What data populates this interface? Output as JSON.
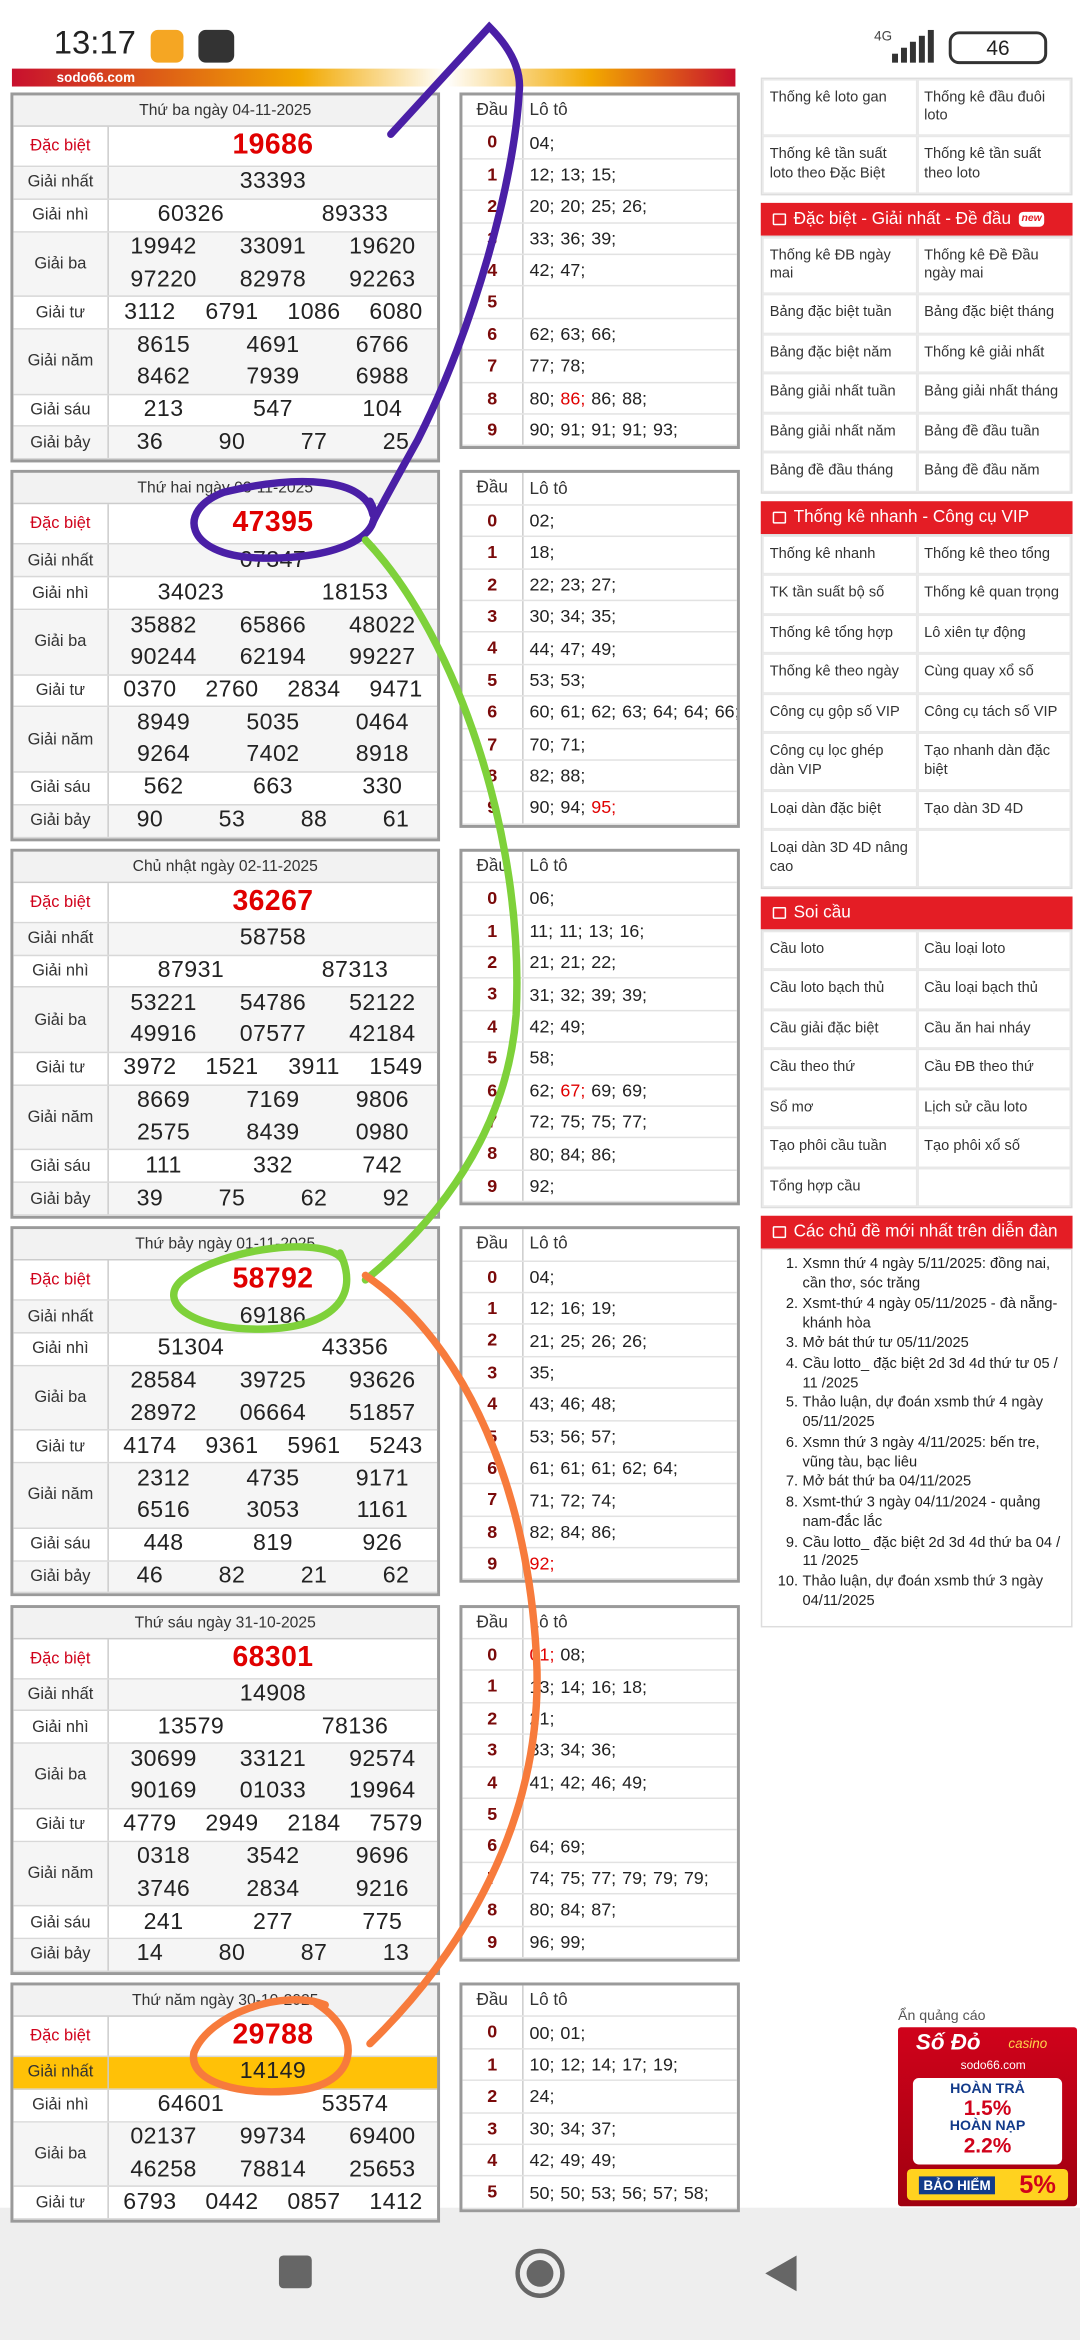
{
  "status": {
    "time": "13:17",
    "network": "4G",
    "battery": "46"
  },
  "banner": "sodo66.com",
  "results": [
    {
      "title": "Thứ ba ngày 04-11-2025",
      "rows": [
        {
          "label": "Đặc biệt",
          "numbers": [
            "19686"
          ]
        },
        {
          "label": "Giải nhất",
          "numbers": [
            "33393"
          ]
        },
        {
          "label": "Giải nhì",
          "numbers": [
            "60326",
            "89333"
          ]
        },
        {
          "label": "Giải ba",
          "numbers": [
            "19942",
            "33091",
            "19620",
            "97220",
            "82978",
            "92263"
          ]
        },
        {
          "label": "Giải tư",
          "numbers": [
            "3112",
            "6791",
            "1086",
            "6080"
          ]
        },
        {
          "label": "Giải năm",
          "numbers": [
            "8615",
            "4691",
            "6766",
            "8462",
            "7939",
            "6988"
          ]
        },
        {
          "label": "Giải sáu",
          "numbers": [
            "213",
            "547",
            "104"
          ]
        },
        {
          "label": "Giải bảy",
          "numbers": [
            "36",
            "90",
            "77",
            "25"
          ]
        }
      ]
    },
    {
      "title": "Thứ hai ngày 03-11-2025",
      "rows": [
        {
          "label": "Đặc biệt",
          "numbers": [
            "47395"
          ]
        },
        {
          "label": "Giải nhất",
          "numbers": [
            "07347"
          ]
        },
        {
          "label": "Giải nhì",
          "numbers": [
            "34023",
            "18153"
          ]
        },
        {
          "label": "Giải ba",
          "numbers": [
            "35882",
            "65866",
            "48022",
            "90244",
            "62194",
            "99227"
          ]
        },
        {
          "label": "Giải tư",
          "numbers": [
            "0370",
            "2760",
            "2834",
            "9471"
          ]
        },
        {
          "label": "Giải năm",
          "numbers": [
            "8949",
            "5035",
            "0464",
            "9264",
            "7402",
            "8918"
          ]
        },
        {
          "label": "Giải sáu",
          "numbers": [
            "562",
            "663",
            "330"
          ]
        },
        {
          "label": "Giải bảy",
          "numbers": [
            "90",
            "53",
            "88",
            "61"
          ]
        }
      ]
    },
    {
      "title": "Chủ nhật ngày 02-11-2025",
      "rows": [
        {
          "label": "Đặc biệt",
          "numbers": [
            "36267"
          ]
        },
        {
          "label": "Giải nhất",
          "numbers": [
            "58758"
          ]
        },
        {
          "label": "Giải nhì",
          "numbers": [
            "87931",
            "87313"
          ]
        },
        {
          "label": "Giải ba",
          "numbers": [
            "53221",
            "54786",
            "52122",
            "49916",
            "07577",
            "42184"
          ]
        },
        {
          "label": "Giải tư",
          "numbers": [
            "3972",
            "1521",
            "3911",
            "1549"
          ]
        },
        {
          "label": "Giải năm",
          "numbers": [
            "8669",
            "7169",
            "9806",
            "2575",
            "8439",
            "0980"
          ]
        },
        {
          "label": "Giải sáu",
          "numbers": [
            "111",
            "332",
            "742"
          ]
        },
        {
          "label": "Giải bảy",
          "numbers": [
            "39",
            "75",
            "62",
            "92"
          ]
        }
      ]
    },
    {
      "title": "Thứ bảy ngày 01-11-2025",
      "rows": [
        {
          "label": "Đặc biệt",
          "numbers": [
            "58792"
          ]
        },
        {
          "label": "Giải nhất",
          "numbers": [
            "69186"
          ]
        },
        {
          "label": "Giải nhì",
          "numbers": [
            "51304",
            "43356"
          ]
        },
        {
          "label": "Giải ba",
          "numbers": [
            "28584",
            "39725",
            "93626",
            "28972",
            "06664",
            "51857"
          ]
        },
        {
          "label": "Giải tư",
          "numbers": [
            "4174",
            "9361",
            "5961",
            "5243"
          ]
        },
        {
          "label": "Giải năm",
          "numbers": [
            "2312",
            "4735",
            "9171",
            "6516",
            "3053",
            "1161"
          ]
        },
        {
          "label": "Giải sáu",
          "numbers": [
            "448",
            "819",
            "926"
          ]
        },
        {
          "label": "Giải bảy",
          "numbers": [
            "46",
            "82",
            "21",
            "62"
          ]
        }
      ]
    },
    {
      "title": "Thứ sáu ngày 31-10-2025",
      "rows": [
        {
          "label": "Đặc biệt",
          "numbers": [
            "68301"
          ]
        },
        {
          "label": "Giải nhất",
          "numbers": [
            "14908"
          ]
        },
        {
          "label": "Giải nhì",
          "numbers": [
            "13579",
            "78136"
          ]
        },
        {
          "label": "Giải ba",
          "numbers": [
            "30699",
            "33121",
            "92574",
            "90169",
            "01033",
            "19964"
          ]
        },
        {
          "label": "Giải tư",
          "numbers": [
            "4779",
            "2949",
            "2184",
            "7579"
          ]
        },
        {
          "label": "Giải năm",
          "numbers": [
            "0318",
            "3542",
            "9696",
            "3746",
            "2834",
            "9216"
          ]
        },
        {
          "label": "Giải sáu",
          "numbers": [
            "241",
            "277",
            "775"
          ]
        },
        {
          "label": "Giải bảy",
          "numbers": [
            "14",
            "80",
            "87",
            "13"
          ]
        }
      ]
    },
    {
      "title": "Thứ năm ngày 30-10-2025",
      "rows": [
        {
          "label": "Đặc biệt",
          "numbers": [
            "29788"
          ]
        },
        {
          "label": "Giải nhất",
          "numbers": [
            "14149"
          ],
          "background": "#ffc107"
        },
        {
          "label": "Giải nhì",
          "numbers": [
            "64601",
            "53574"
          ]
        },
        {
          "label": "Giải ba",
          "numbers": [
            "02137",
            "99734",
            "69400",
            "46258",
            "78814",
            "25653"
          ]
        },
        {
          "label": "Giải tư",
          "numbers": [
            "6793",
            "0442",
            "0857",
            "1412"
          ]
        }
      ]
    }
  ],
  "lotos": [
    {
      "headers": [
        "Đầu",
        "Lô tô"
      ],
      "rows": [
        {
          "head": "0",
          "tails": [
            "04;"
          ]
        },
        {
          "head": "1",
          "tails": [
            "12;",
            "13;",
            "15;"
          ]
        },
        {
          "head": "2",
          "tails": [
            "20;",
            "20;",
            "25;",
            "26;"
          ]
        },
        {
          "head": "3",
          "tails": [
            "33;",
            "36;",
            "39;"
          ]
        },
        {
          "head": "4",
          "tails": [
            "42;",
            "47;"
          ]
        },
        {
          "head": "5",
          "tails": []
        },
        {
          "head": "6",
          "tails": [
            "62;",
            "63;",
            "66;"
          ]
        },
        {
          "head": "7",
          "tails": [
            "77;",
            "78;"
          ]
        },
        {
          "head": "8",
          "tails": [
            "80;",
            "86;",
            "86;",
            "88;"
          ]
        },
        {
          "head": "9",
          "tails": [
            "90;",
            "91;",
            "91;",
            "91;",
            "93;"
          ]
        }
      ]
    },
    {
      "headers": [
        "Đầu",
        "Lô tô"
      ],
      "rows": [
        {
          "head": "0",
          "tails": [
            "02;"
          ]
        },
        {
          "head": "1",
          "tails": [
            "18;"
          ]
        },
        {
          "head": "2",
          "tails": [
            "22;",
            "23;",
            "27;"
          ]
        },
        {
          "head": "3",
          "tails": [
            "30;",
            "34;",
            "35;"
          ]
        },
        {
          "head": "4",
          "tails": [
            "44;",
            "47;",
            "49;"
          ]
        },
        {
          "head": "5",
          "tails": [
            "53;",
            "53;"
          ]
        },
        {
          "head": "6",
          "tails": [
            "60;",
            "61;",
            "62;",
            "63;",
            "64;",
            "64;",
            "66;"
          ]
        },
        {
          "head": "7",
          "tails": [
            "70;",
            "71;"
          ]
        },
        {
          "head": "8",
          "tails": [
            "82;",
            "88;"
          ]
        },
        {
          "head": "9",
          "tails": [
            "90;",
            "94;",
            "95;"
          ]
        }
      ]
    },
    {
      "headers": [
        "Đầu",
        "Lô tô"
      ],
      "rows": [
        {
          "head": "0",
          "tails": [
            "06;"
          ]
        },
        {
          "head": "1",
          "tails": [
            "11;",
            "11;",
            "13;",
            "16;"
          ]
        },
        {
          "head": "2",
          "tails": [
            "21;",
            "21;",
            "22;"
          ]
        },
        {
          "head": "3",
          "tails": [
            "31;",
            "32;",
            "39;",
            "39;"
          ]
        },
        {
          "head": "4",
          "tails": [
            "42;",
            "49;"
          ]
        },
        {
          "head": "5",
          "tails": [
            "58;"
          ]
        },
        {
          "head": "6",
          "tails": [
            "62;",
            "67;",
            "69;",
            "69;"
          ]
        },
        {
          "head": "7",
          "tails": [
            "72;",
            "75;",
            "75;",
            "77;"
          ]
        },
        {
          "head": "8",
          "tails": [
            "80;",
            "84;",
            "86;"
          ]
        },
        {
          "head": "9",
          "tails": [
            "92;"
          ]
        }
      ]
    },
    {
      "headers": [
        "Đầu",
        "Lô tô"
      ],
      "rows": [
        {
          "head": "0",
          "tails": [
            "04;"
          ]
        },
        {
          "head": "1",
          "tails": [
            "12;",
            "16;",
            "19;"
          ]
        },
        {
          "head": "2",
          "tails": [
            "21;",
            "25;",
            "26;",
            "26;"
          ]
        },
        {
          "head": "3",
          "tails": [
            "35;"
          ]
        },
        {
          "head": "4",
          "tails": [
            "43;",
            "46;",
            "48;"
          ]
        },
        {
          "head": "5",
          "tails": [
            "53;",
            "56;",
            "57;"
          ]
        },
        {
          "head": "6",
          "tails": [
            "61;",
            "61;",
            "61;",
            "62;",
            "64;"
          ]
        },
        {
          "head": "7",
          "tails": [
            "71;",
            "72;",
            "74;"
          ]
        },
        {
          "head": "8",
          "tails": [
            "82;",
            "84;",
            "86;"
          ]
        },
        {
          "head": "9",
          "tails": [
            "92;"
          ]
        }
      ]
    },
    {
      "headers": [
        "Đầu",
        "Lô tô"
      ],
      "rows": [
        {
          "head": "0",
          "tails": [
            "01;",
            "08;"
          ]
        },
        {
          "head": "1",
          "tails": [
            "13;",
            "14;",
            "16;",
            "18;"
          ]
        },
        {
          "head": "2",
          "tails": [
            "21;"
          ]
        },
        {
          "head": "3",
          "tails": [
            "33;",
            "34;",
            "36;"
          ]
        },
        {
          "head": "4",
          "tails": [
            "41;",
            "42;",
            "46;",
            "49;"
          ]
        },
        {
          "head": "5",
          "tails": []
        },
        {
          "head": "6",
          "tails": [
            "64;",
            "69;"
          ]
        },
        {
          "head": "7",
          "tails": [
            "74;",
            "75;",
            "77;",
            "79;",
            "79;",
            "79;"
          ]
        },
        {
          "head": "8",
          "tails": [
            "80;",
            "84;",
            "87;"
          ]
        },
        {
          "head": "9",
          "tails": [
            "96;",
            "99;"
          ]
        }
      ]
    },
    {
      "headers": [
        "Đầu",
        "Lô tô"
      ],
      "rows": [
        {
          "head": "0",
          "tails": [
            "00;",
            "01;"
          ]
        },
        {
          "head": "1",
          "tails": [
            "10;",
            "12;",
            "14;",
            "17;",
            "19;"
          ]
        },
        {
          "head": "2",
          "tails": [
            "24;"
          ]
        },
        {
          "head": "3",
          "tails": [
            "30;",
            "34;",
            "37;"
          ]
        },
        {
          "head": "4",
          "tails": [
            "42;",
            "49;",
            "49;"
          ]
        },
        {
          "head": "5",
          "tails": [
            "50;",
            "50;",
            "53;",
            "56;",
            "57;",
            "58;"
          ]
        }
      ]
    }
  ],
  "sidebar": {
    "top_rows": [
      [
        "Thống kê loto gan",
        "Thống kê đầu đuôi loto"
      ],
      [
        "Thống kê tần suất loto theo Đặc Biệt",
        "Thống kê tần suất theo loto"
      ]
    ],
    "sections": [
      {
        "title": "Đặc biệt - Giải nhất - Đề đầu",
        "badge": "new",
        "rows": [
          [
            "Thống kê ĐB ngày mai",
            "Thống kê Đề Đầu ngày mai"
          ],
          [
            "Bảng đặc biệt tuần",
            "Bảng đặc biệt tháng"
          ],
          [
            "Bảng đặc biệt năm",
            "Thống kê giải nhất"
          ],
          [
            "Bảng giải nhất tuần",
            "Bảng giải nhất tháng"
          ],
          [
            "Bảng giải nhất năm",
            "Bảng đề đầu tuần"
          ],
          [
            "Bảng đề đầu tháng",
            "Bảng đề đầu năm"
          ]
        ]
      },
      {
        "title": "Thống kê nhanh - Công cụ VIP",
        "rows": [
          [
            "Thống kê nhanh",
            "Thống kê theo tổng"
          ],
          [
            "TK tần suất bộ số",
            "Thống kê quan trọng"
          ],
          [
            "Thống kê tổng hợp",
            "Lô xiên tự động"
          ],
          [
            "Thống kê theo ngày",
            "Cùng quay xổ số"
          ],
          [
            "Công cụ gộp số VIP",
            "Công cụ tách số VIP"
          ],
          [
            "Công cụ lọc ghép dàn VIP",
            "Tạo nhanh dàn đặc biệt"
          ],
          [
            "Loại dàn đặc biệt",
            "Tạo dàn 3D 4D"
          ],
          [
            "Loại dàn 3D 4D nâng cao"
          ]
        ]
      },
      {
        "title": "Soi cầu",
        "rows": [
          [
            "Cầu loto",
            "Cầu loại loto"
          ],
          [
            "Cầu loto bạch thủ",
            "Cầu loại bạch thủ"
          ],
          [
            "Cầu giải đặc biệt",
            "Cầu ăn hai nháy"
          ],
          [
            "Cầu theo thứ",
            "Cầu ĐB theo thứ"
          ],
          [
            "Sổ mơ",
            "Lịch sử cầu loto"
          ],
          [
            "Tạo phôi cầu tuần",
            "Tạo phôi xổ số"
          ],
          [
            "Tổng hợp cầu"
          ]
        ]
      }
    ],
    "forum": {
      "title": "Các chủ đề mới nhất trên diễn đàn",
      "items": [
        {
          "num": "1.",
          "text": "Xsmn thứ 4 ngày 5/11/2025: đồng nai, cần thơ, sóc trăng"
        },
        {
          "num": "2.",
          "text": "Xsmt-thứ 4 ngày 05/11/2025 - đà nẵng-khánh hòa"
        },
        {
          "num": "3.",
          "text": "Mở bát thứ tư 05/11/2025"
        },
        {
          "num": "4.",
          "text": "Cầu lotto_ đặc biệt 2d 3d 4d thứ tư 05 / 11 /2025"
        },
        {
          "num": "5.",
          "text": "Thảo luận, dự đoán xsmb thứ 4 ngày 05/11/2025"
        },
        {
          "num": "6.",
          "text": "Xsmn thứ 3 ngày 4/11/2025: bến tre, vũng tàu, bạc liêu"
        },
        {
          "num": "7.",
          "text": "Mở bát thứ ba 04/11/2025"
        },
        {
          "num": "8.",
          "text": "Xsmt-thứ 3 ngày 04/11/2024 - quảng nam-đắc lắc"
        },
        {
          "num": "9.",
          "text": "Cầu lotto_ đặc biệt 2d 3d 4d thứ ba 04 / 11 /2025"
        },
        {
          "num": "10.",
          "text": "Thảo luận, dự đoán xsmb thứ 3 ngày 04/11/2025"
        }
      ]
    }
  },
  "ad": {
    "hide": "Ẩn quảng cáo",
    "brand": "Số Đỏ",
    "brand_sub": "casino",
    "site": "sodo66.com",
    "line1": "HOÀN TRẢ",
    "rate1": "1.5%",
    "line2": "HOÀN NẠP",
    "rate2": "2.2%",
    "line3": "BẢO HIỂM",
    "rate3": "5%"
  }
}
